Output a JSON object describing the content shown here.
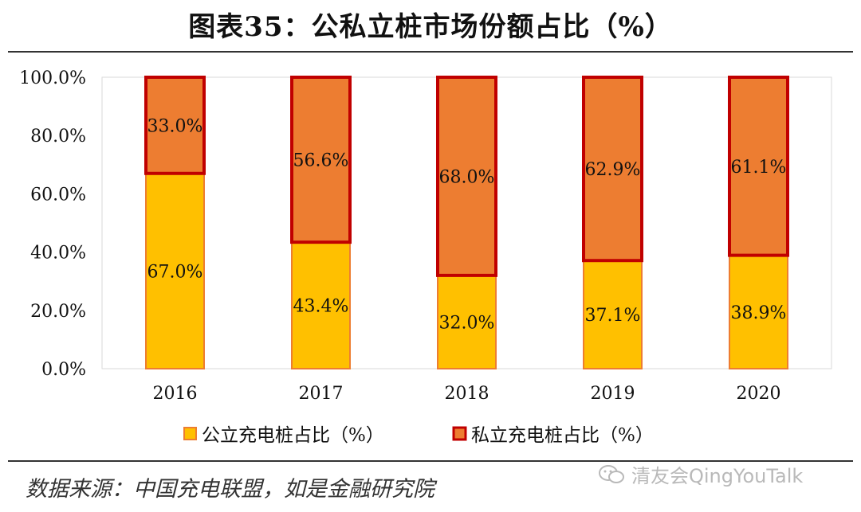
{
  "title": "图表35：公私立桩市场份额占比（%）",
  "source_note": "数据来源：中国充电联盟，如是金融研究院",
  "watermark": "清友会QingYouTalk",
  "colors": {
    "public_fill": "#FFC000",
    "public_border": "#ED7D31",
    "private_fill": "#ED7D31",
    "private_border": "#C00000",
    "grid": "#d9d9d9",
    "axis_text": "#111111"
  },
  "chart_data": {
    "type": "bar",
    "stacked": true,
    "percent": true,
    "categories": [
      "2016",
      "2017",
      "2018",
      "2019",
      "2020"
    ],
    "series": [
      {
        "name": "公立充电桩占比（%）",
        "values": [
          67.0,
          43.4,
          32.0,
          37.1,
          38.9
        ],
        "labels": [
          "67.0%",
          "43.4%",
          "32.0%",
          "37.1%",
          "38.9%"
        ]
      },
      {
        "name": "私立充电桩占比（%）",
        "values": [
          33.0,
          56.6,
          68.0,
          62.9,
          61.1
        ],
        "labels": [
          "33.0%",
          "56.6%",
          "68.0%",
          "62.9%",
          "61.1%"
        ]
      }
    ],
    "ylim": [
      0,
      100
    ],
    "yticks": [
      "0.0%",
      "20.0%",
      "40.0%",
      "60.0%",
      "80.0%",
      "100.0%"
    ],
    "grid": false,
    "legend_position": "bottom"
  }
}
